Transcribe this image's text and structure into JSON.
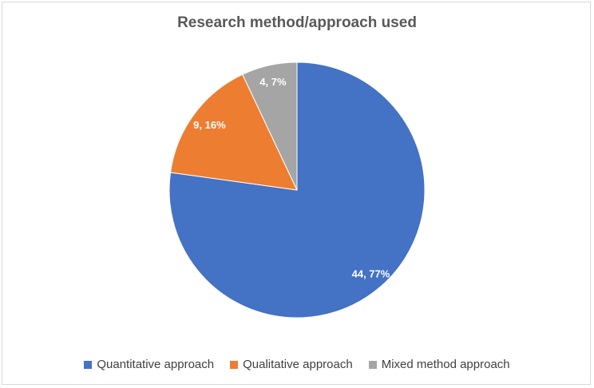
{
  "chart_data": {
    "type": "pie",
    "title": "Research method/approach used",
    "categories": [
      "Quantitative approach",
      "Qualitative approach",
      "Mixed method approach"
    ],
    "values": [
      44,
      9,
      4
    ],
    "percentages": [
      "77%",
      "16%",
      "7%"
    ],
    "data_labels": [
      "44, 77%",
      "9, 16%",
      "4, 7%"
    ],
    "colors": [
      "#4472c4",
      "#ed7d31",
      "#a5a5a5"
    ],
    "legend_position": "bottom"
  }
}
